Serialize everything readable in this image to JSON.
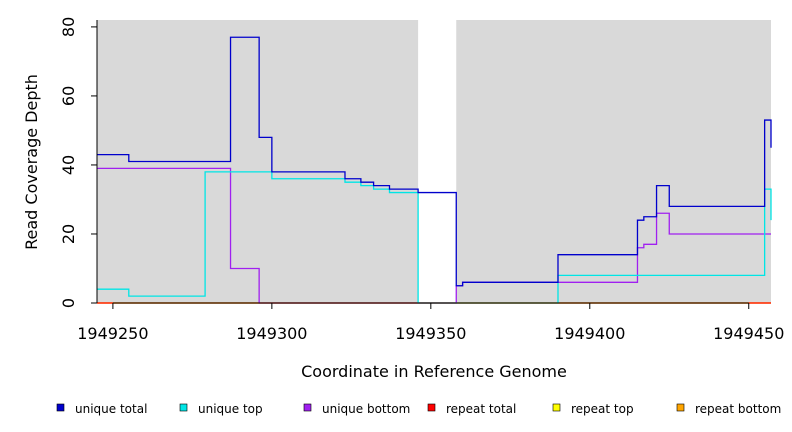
{
  "chart_data": {
    "type": "line",
    "title": "",
    "xlabel": "Coordinate in Reference Genome",
    "ylabel": "Read Coverage Depth",
    "xlim": [
      1949245,
      1949457
    ],
    "ylim": [
      0,
      82
    ],
    "xticks": [
      1949250,
      1949300,
      1949350,
      1949400,
      1949450
    ],
    "xtick_labels": [
      "1949250",
      "1949300",
      "1949350",
      "1949400",
      "1949450"
    ],
    "yticks": [
      0,
      20,
      40,
      60,
      80
    ],
    "ytick_labels": [
      "0",
      "20",
      "40",
      "60",
      "80"
    ],
    "grid": false,
    "background": "#d9d9d9",
    "gap": [
      1949346,
      1949358
    ],
    "legend_position": "bottom",
    "series": [
      {
        "name": "unique total",
        "color": "#0000cc",
        "x": [
          1949245,
          1949255,
          1949279,
          1949287,
          1949296,
          1949300,
          1949323,
          1949328,
          1949332,
          1949337,
          1949346,
          1949358,
          1949360,
          1949390,
          1949415,
          1949417,
          1949421,
          1949425,
          1949455,
          1949457
        ],
        "y": [
          43,
          41,
          41,
          77,
          48,
          38,
          36,
          35,
          34,
          33,
          32,
          5,
          6,
          14,
          24,
          25,
          34,
          28,
          53,
          45
        ]
      },
      {
        "name": "unique top",
        "color": "#00e5e5",
        "x": [
          1949245,
          1949255,
          1949279,
          1949296,
          1949300,
          1949323,
          1949328,
          1949332,
          1949337,
          1949346,
          1949358,
          1949390,
          1949455,
          1949457
        ],
        "y": [
          4,
          2,
          38,
          38,
          36,
          35,
          34,
          33,
          32,
          0,
          0,
          8,
          33,
          24
        ]
      },
      {
        "name": "unique bottom",
        "color": "#a020f0",
        "x": [
          1949245,
          1949287,
          1949296,
          1949346,
          1949358,
          1949360,
          1949390,
          1949415,
          1949417,
          1949421,
          1949425,
          1949457
        ],
        "y": [
          39,
          10,
          0,
          0,
          5,
          6,
          6,
          16,
          17,
          26,
          20,
          20
        ]
      },
      {
        "name": "repeat total",
        "color": "#ff0000",
        "x": [
          1949245,
          1949457
        ],
        "y": [
          0,
          0
        ]
      },
      {
        "name": "repeat top",
        "color": "#ffff00",
        "x": [
          1949245,
          1949457
        ],
        "y": [
          0,
          0
        ]
      },
      {
        "name": "repeat bottom",
        "color": "#ffa500",
        "x": [
          1949245,
          1949457
        ],
        "y": [
          0,
          0
        ]
      }
    ]
  }
}
